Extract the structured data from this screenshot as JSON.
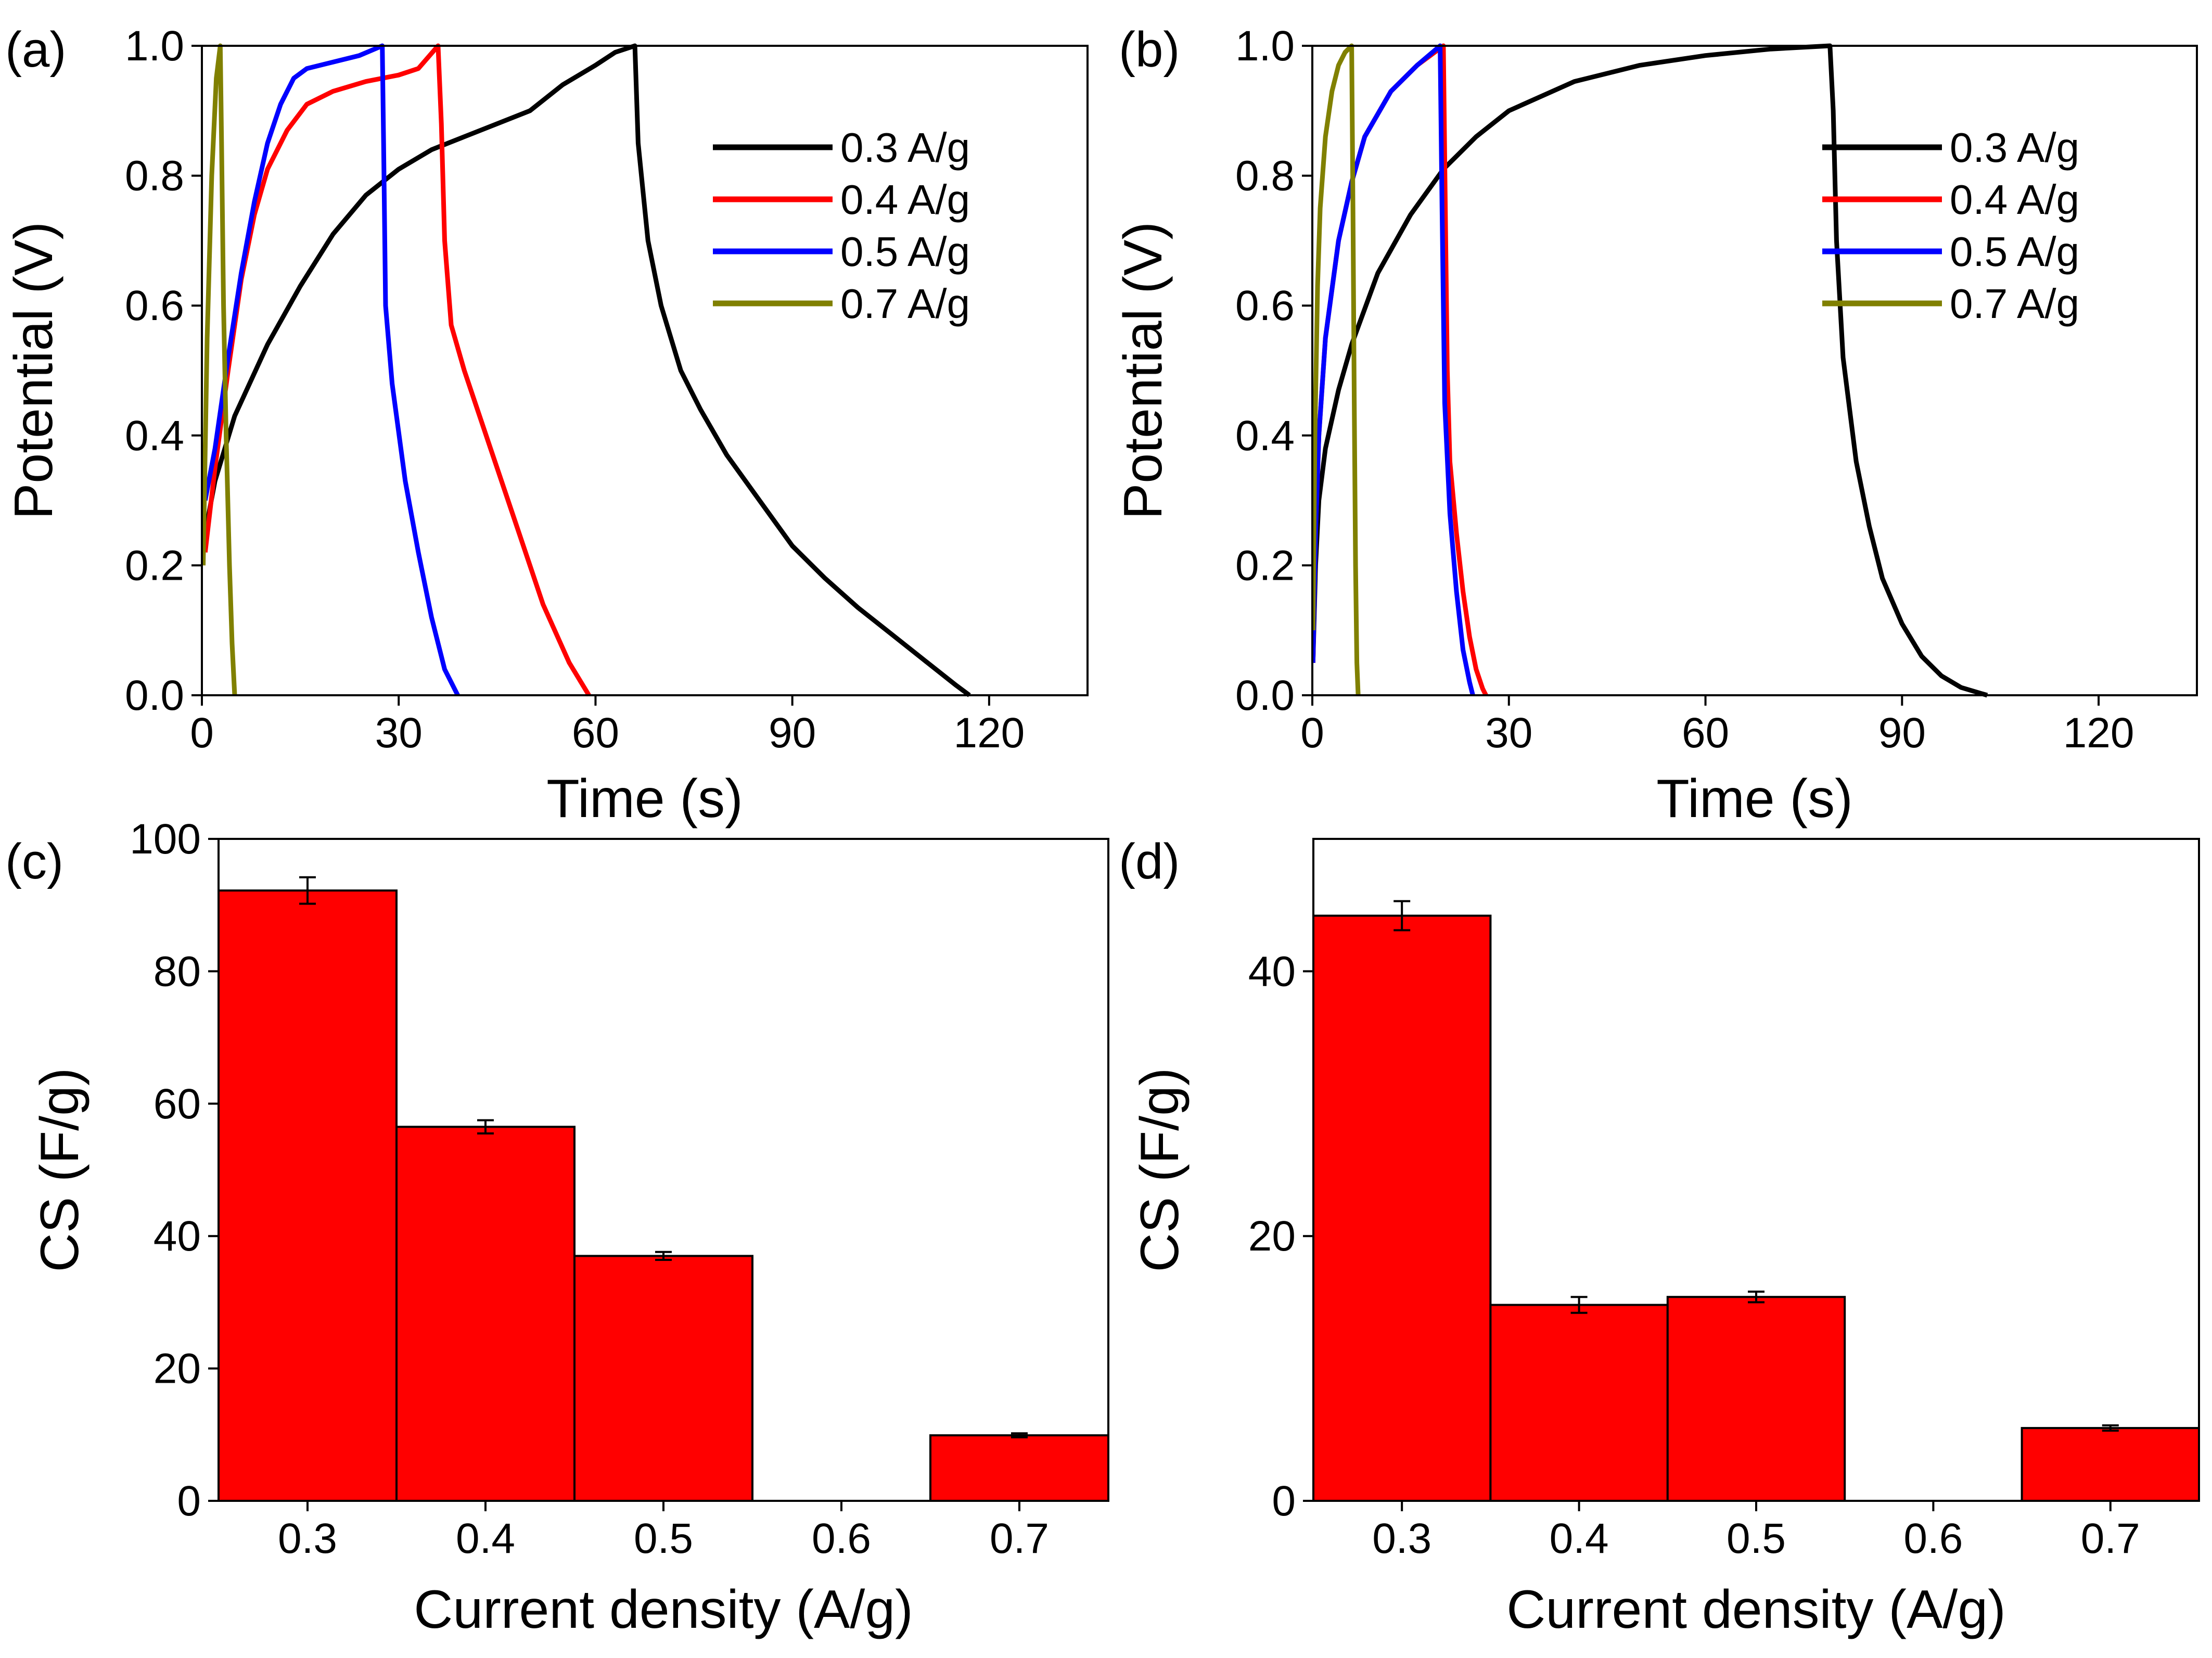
{
  "chart_data": [
    {
      "panel": "(a)",
      "type": "line",
      "xlabel": "Time (s)",
      "ylabel": "Potential (V)",
      "xlim": [
        0,
        135
      ],
      "ylim": [
        0,
        1.0
      ],
      "xticks": [
        0,
        30,
        60,
        90,
        120
      ],
      "yticks": [
        0.0,
        0.2,
        0.4,
        0.6,
        0.8,
        1.0
      ],
      "xtick_labels": [
        "0",
        "30",
        "60",
        "90",
        "120"
      ],
      "ytick_labels": [
        "0.0",
        "0.2",
        "0.4",
        "0.6",
        "0.8",
        "1.0"
      ],
      "legend": "top-right",
      "series": [
        {
          "name": "0.3 A/g",
          "color": "#000000",
          "x": [
            0.5,
            2,
            5,
            10,
            15,
            20,
            25,
            30,
            35,
            40,
            45,
            50,
            55,
            60,
            63,
            66,
            66.5,
            68,
            70,
            73,
            76,
            80,
            85,
            90,
            95,
            100,
            105,
            110,
            115,
            117
          ],
          "y": [
            0.25,
            0.33,
            0.43,
            0.54,
            0.63,
            0.71,
            0.77,
            0.81,
            0.84,
            0.86,
            0.88,
            0.9,
            0.94,
            0.97,
            0.99,
            1.0,
            0.85,
            0.7,
            0.6,
            0.5,
            0.44,
            0.37,
            0.3,
            0.23,
            0.18,
            0.135,
            0.095,
            0.055,
            0.015,
            0.0
          ]
        },
        {
          "name": "0.4 A/g",
          "color": "#ff0000",
          "x": [
            0.5,
            2,
            4,
            6,
            8,
            10,
            13,
            16,
            20,
            25,
            30,
            33,
            36,
            36.5,
            37,
            38,
            40,
            44,
            48,
            52,
            56,
            59
          ],
          "y": [
            0.22,
            0.35,
            0.5,
            0.64,
            0.74,
            0.81,
            0.87,
            0.91,
            0.93,
            0.945,
            0.955,
            0.965,
            1.0,
            0.88,
            0.7,
            0.57,
            0.5,
            0.38,
            0.26,
            0.14,
            0.05,
            0.0
          ]
        },
        {
          "name": "0.5 A/g",
          "color": "#0000ff",
          "x": [
            0.5,
            2,
            4,
            6,
            8,
            10,
            12,
            14,
            16,
            20,
            24,
            27.5,
            27.7,
            28,
            29,
            31,
            33,
            35,
            37,
            39
          ],
          "y": [
            0.3,
            0.38,
            0.52,
            0.65,
            0.76,
            0.85,
            0.91,
            0.95,
            0.965,
            0.975,
            0.985,
            1.0,
            0.85,
            0.6,
            0.48,
            0.33,
            0.22,
            0.12,
            0.04,
            0.0
          ]
        },
        {
          "name": "0.7 A/g",
          "color": "#808000",
          "x": [
            0.2,
            0.8,
            1.5,
            2.2,
            2.8,
            3.0,
            3.3,
            3.7,
            4.2,
            4.6,
            5.0
          ],
          "y": [
            0.2,
            0.55,
            0.8,
            0.95,
            1.0,
            0.85,
            0.6,
            0.4,
            0.2,
            0.08,
            0.0
          ]
        }
      ]
    },
    {
      "panel": "(b)",
      "type": "line",
      "xlabel": "Time (s)",
      "ylabel": "Potential (V)",
      "xlim": [
        0,
        135
      ],
      "ylim": [
        0,
        1.0
      ],
      "xticks": [
        0,
        30,
        60,
        90,
        120
      ],
      "yticks": [
        0.0,
        0.2,
        0.4,
        0.6,
        0.8,
        1.0
      ],
      "xtick_labels": [
        "0",
        "30",
        "60",
        "90",
        "120"
      ],
      "ytick_labels": [
        "0.0",
        "0.2",
        "0.4",
        "0.6",
        "0.8",
        "1.0"
      ],
      "legend": "top-right",
      "series": [
        {
          "name": "0.3 A/g",
          "color": "#000000",
          "x": [
            0.1,
            0.5,
            1,
            2,
            4,
            6,
            10,
            15,
            20,
            25,
            30,
            40,
            50,
            60,
            70,
            79,
            79.5,
            80,
            81,
            83,
            85,
            87,
            90,
            93,
            96,
            99,
            102,
            103
          ],
          "y": [
            0.05,
            0.2,
            0.3,
            0.38,
            0.47,
            0.54,
            0.65,
            0.74,
            0.81,
            0.86,
            0.9,
            0.945,
            0.97,
            0.985,
            0.995,
            1.0,
            0.9,
            0.7,
            0.52,
            0.36,
            0.26,
            0.18,
            0.11,
            0.06,
            0.03,
            0.012,
            0.003,
            0.0
          ]
        },
        {
          "name": "0.4 A/g",
          "color": "#ff0000",
          "x": [
            0.1,
            0.5,
            1,
            2,
            4,
            6,
            8,
            12,
            16,
            20,
            20.3,
            20.6,
            21,
            22,
            23,
            24,
            25,
            26,
            26.5
          ],
          "y": [
            0.05,
            0.25,
            0.4,
            0.55,
            0.7,
            0.79,
            0.86,
            0.93,
            0.97,
            1.0,
            0.75,
            0.5,
            0.36,
            0.25,
            0.16,
            0.09,
            0.04,
            0.01,
            0.0
          ]
        },
        {
          "name": "0.5 A/g",
          "color": "#0000ff",
          "x": [
            0.1,
            0.5,
            1,
            2,
            4,
            6,
            8,
            12,
            16,
            19.5,
            19.8,
            20.2,
            21,
            22,
            23,
            24,
            24.5
          ],
          "y": [
            0.05,
            0.25,
            0.4,
            0.55,
            0.7,
            0.79,
            0.86,
            0.93,
            0.97,
            1.0,
            0.75,
            0.45,
            0.28,
            0.16,
            0.07,
            0.02,
            0.0
          ]
        },
        {
          "name": "0.7 A/g",
          "color": "#808000",
          "x": [
            0.1,
            0.4,
            0.8,
            1.2,
            2,
            3,
            4,
            5,
            6,
            6.2,
            6.4,
            6.6,
            6.8,
            7.0
          ],
          "y": [
            0.1,
            0.4,
            0.63,
            0.75,
            0.86,
            0.93,
            0.97,
            0.99,
            1.0,
            0.75,
            0.45,
            0.2,
            0.05,
            0.0
          ]
        }
      ]
    },
    {
      "panel": "(c)",
      "type": "bar",
      "xlabel": "Current density (A/g)",
      "ylabel": "CS (F/g)",
      "categories": [
        "0.3",
        "0.4",
        "0.5",
        "0.7"
      ],
      "x": [
        0.3,
        0.4,
        0.5,
        0.7
      ],
      "values": [
        92.2,
        56.5,
        37.0,
        9.9
      ],
      "errors": [
        2.0,
        1.0,
        0.6,
        0.3
      ],
      "xlim": [
        0.25,
        0.75
      ],
      "ylim": [
        0,
        100
      ],
      "xticks": [
        0.3,
        0.4,
        0.5,
        0.6,
        0.7
      ],
      "yticks": [
        0,
        20,
        40,
        60,
        80,
        100
      ],
      "xtick_labels": [
        "0.3",
        "0.4",
        "0.5",
        "0.6",
        "0.7"
      ],
      "ytick_labels": [
        "0",
        "20",
        "40",
        "60",
        "80",
        "100"
      ],
      "bar_color": "#ff0000"
    },
    {
      "panel": "(d)",
      "type": "bar",
      "xlabel": "Current density (A/g)",
      "ylabel": "CS (F/g)",
      "categories": [
        "0.3",
        "0.4",
        "0.5",
        "0.7"
      ],
      "x": [
        0.3,
        0.4,
        0.5,
        0.7
      ],
      "values": [
        44.2,
        14.8,
        15.4,
        5.5
      ],
      "errors": [
        1.1,
        0.6,
        0.4,
        0.2
      ],
      "xlim": [
        0.25,
        0.75
      ],
      "ylim": [
        0,
        50
      ],
      "xticks": [
        0.3,
        0.4,
        0.5,
        0.6,
        0.7
      ],
      "yticks": [
        0,
        20,
        40
      ],
      "xtick_labels": [
        "0.3",
        "0.4",
        "0.5",
        "0.6",
        "0.7"
      ],
      "ytick_labels": [
        "0",
        "20",
        "40"
      ],
      "bar_color": "#ff0000"
    }
  ]
}
